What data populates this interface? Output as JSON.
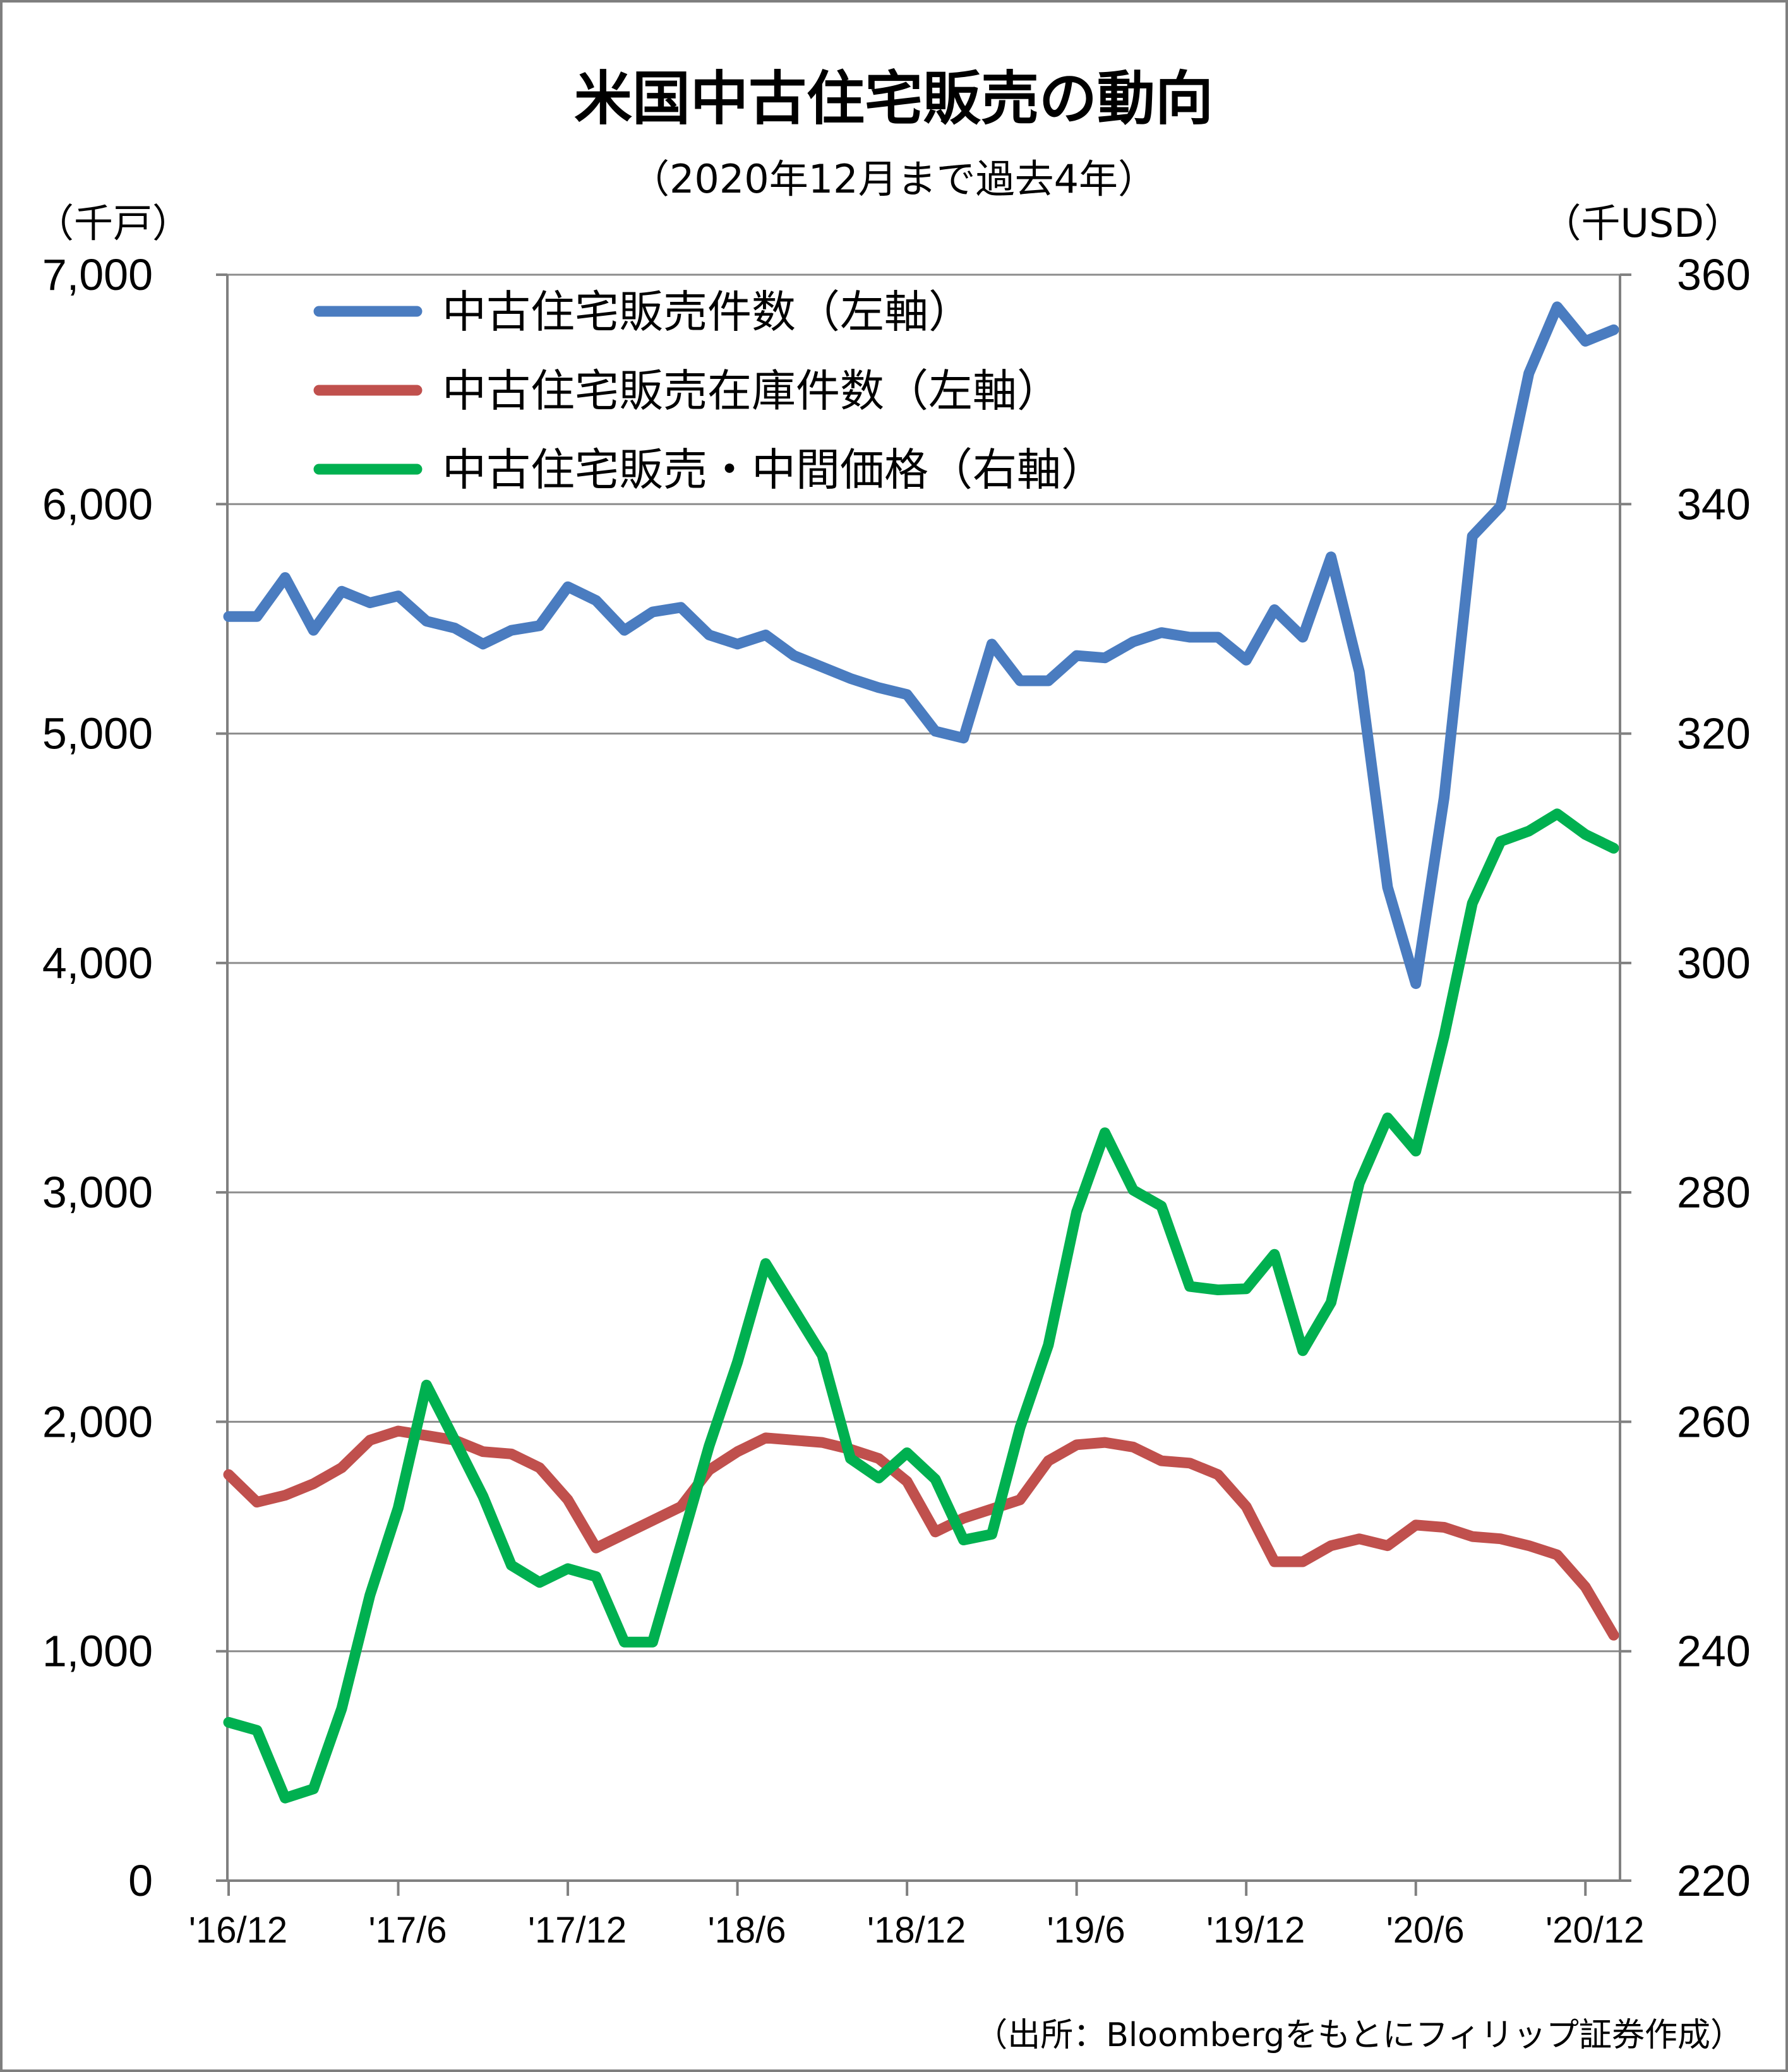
{
  "chart_data": {
    "type": "line",
    "title": "米国中古住宅販売の動向",
    "subtitle": "（2020年12月まで過去4年）",
    "left_unit": "（千戸）",
    "right_unit": "（千USD）",
    "source": "（出所：Bloombergをもとにフィリップ証券作成）",
    "left_ylim": [
      0,
      7000
    ],
    "right_ylim": [
      220,
      360
    ],
    "left_ticks": [
      "0",
      "1,000",
      "2,000",
      "3,000",
      "4,000",
      "5,000",
      "6,000",
      "7,000"
    ],
    "right_ticks": [
      "220",
      "240",
      "260",
      "280",
      "300",
      "320",
      "340",
      "360"
    ],
    "x_tick_labels": [
      "'16/12",
      "'17/6",
      "'17/12",
      "'18/6",
      "'18/12",
      "'19/6",
      "'19/12",
      "'20/6",
      "'20/12"
    ],
    "x_start": "2016-12",
    "x_end": "2020-12",
    "grid": "horizontal",
    "legend_position": "top-left",
    "series": [
      {
        "name": "中古住宅販売件数（左軸）",
        "axis": "left",
        "color": "#4a7cc0",
        "values": [
          5510,
          5510,
          5680,
          5450,
          5620,
          5570,
          5600,
          5490,
          5460,
          5390,
          5450,
          5470,
          5640,
          5580,
          5450,
          5530,
          5550,
          5430,
          5390,
          5430,
          5340,
          5290,
          5240,
          5200,
          5170,
          5010,
          4980,
          5390,
          5230,
          5230,
          5340,
          5330,
          5400,
          5440,
          5420,
          5420,
          5320,
          5540,
          5420,
          5770,
          5270,
          4330,
          3910,
          4720,
          5860,
          5990,
          6570,
          6860,
          6710,
          6760
        ]
      },
      {
        "name": "中古住宅販売在庫件数（左軸）",
        "axis": "left",
        "color": "#c0504d",
        "values": [
          1770,
          1650,
          1680,
          1730,
          1800,
          1920,
          1960,
          1940,
          1920,
          1870,
          1860,
          1800,
          1660,
          1450,
          1510,
          1570,
          1630,
          1790,
          1870,
          1930,
          1920,
          1910,
          1880,
          1840,
          1740,
          1520,
          1580,
          1620,
          1660,
          1830,
          1900,
          1910,
          1890,
          1830,
          1820,
          1770,
          1630,
          1390,
          1390,
          1460,
          1490,
          1460,
          1550,
          1540,
          1500,
          1490,
          1460,
          1420,
          1280,
          1070
        ]
      },
      {
        "name": "中古住宅販売・中間価格（右軸）",
        "axis": "right",
        "color": "#00b050",
        "values": [
          233.8,
          233.1,
          227.2,
          228.0,
          235.0,
          244.9,
          252.5,
          263.2,
          258.4,
          253.5,
          247.5,
          246.0,
          247.2,
          246.5,
          240.8,
          240.8,
          249.3,
          257.9,
          265.2,
          273.8,
          269.8,
          265.8,
          256.8,
          255.1,
          257.3,
          255.0,
          249.7,
          250.2,
          259.5,
          266.7,
          278.3,
          285.2,
          280.2,
          278.8,
          271.8,
          271.5,
          271.6,
          274.6,
          266.2,
          270.4,
          280.8,
          286.5,
          283.6,
          293.6,
          305.2,
          310.6,
          311.5,
          313.0,
          311.2,
          310.0
        ]
      }
    ]
  }
}
